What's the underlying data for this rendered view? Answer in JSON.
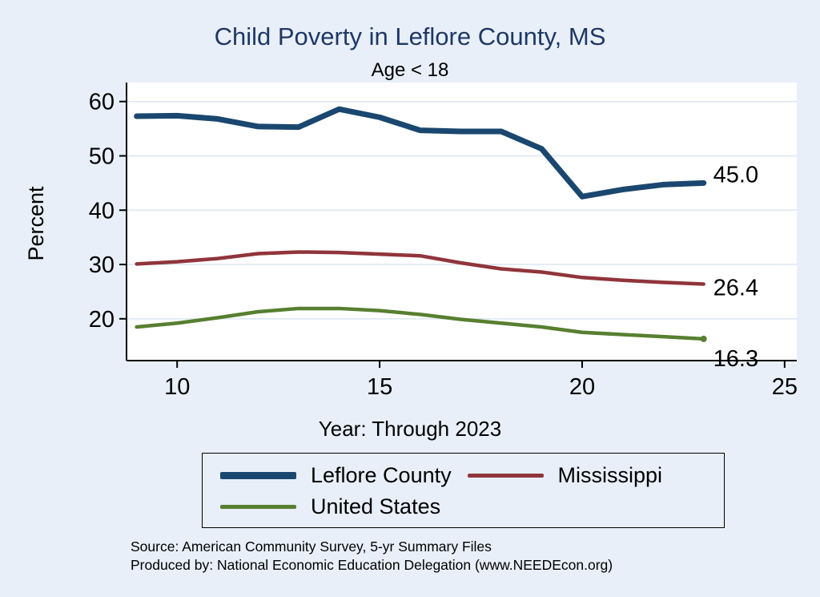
{
  "chart_data": {
    "type": "line",
    "title": "Child Poverty in Leflore County, MS",
    "subtitle": "Age < 18",
    "xlabel": "Year: Through 2023",
    "ylabel": "Percent",
    "x": [
      9,
      10,
      11,
      12,
      13,
      14,
      15,
      16,
      17,
      18,
      19,
      20,
      21,
      22,
      23
    ],
    "xticks": [
      10,
      15,
      20,
      25
    ],
    "yticks": [
      20,
      30,
      40,
      50,
      60
    ],
    "xlim": [
      8.75,
      25.3
    ],
    "ylim": [
      12.3,
      63.5
    ],
    "grid": true,
    "legend_position": "bottom",
    "background_color": "#e8eff8",
    "plot_background_color": "#ffffff",
    "gridline_color": "#dce6f2",
    "title_color": "#1f3864",
    "series": [
      {
        "name": "Leflore County",
        "color": "#1a476f",
        "width": 7,
        "values": [
          57.3,
          57.4,
          56.8,
          55.4,
          55.3,
          58.6,
          57.1,
          54.7,
          54.5,
          54.5,
          51.3,
          42.5,
          43.8,
          44.7,
          45.0
        ],
        "end_label": "45.0",
        "end_label_dy": -10,
        "end_marker": false
      },
      {
        "name": "Mississippi",
        "color": "#90353b",
        "width": 4.5,
        "values": [
          30.1,
          30.5,
          31.1,
          32.0,
          32.3,
          32.2,
          31.9,
          31.6,
          30.3,
          29.2,
          28.6,
          27.6,
          27.1,
          26.7,
          26.4
        ],
        "end_label": "26.4",
        "end_label_dy": 5,
        "end_marker": false
      },
      {
        "name": "United States",
        "color": "#577f30",
        "width": 4.5,
        "values": [
          18.5,
          19.2,
          20.2,
          21.3,
          21.9,
          21.9,
          21.5,
          20.8,
          19.9,
          19.2,
          18.5,
          17.5,
          17.1,
          16.7,
          16.3
        ],
        "end_label": "16.3",
        "end_label_dy": 25,
        "end_marker": true
      }
    ]
  },
  "footer": {
    "line1": "Source: American Community Survey, 5-yr Summary Files",
    "line2": "Produced by: National Economic Education Delegation (www.NEEDEcon.org)"
  }
}
